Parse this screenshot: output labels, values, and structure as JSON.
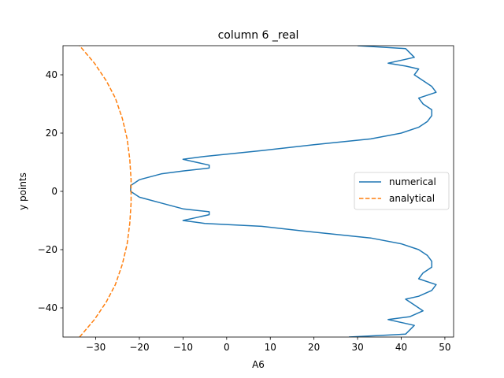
{
  "chart_data": {
    "type": "line",
    "title": "column 6 _real",
    "xlabel": "A6",
    "ylabel": "y points",
    "xlim": [
      -37.5,
      52
    ],
    "ylim": [
      -50,
      50
    ],
    "xticks": [
      -30,
      -20,
      -10,
      0,
      10,
      20,
      30,
      40,
      50
    ],
    "yticks": [
      -40,
      -20,
      0,
      20,
      40
    ],
    "xtick_labels": [
      "−30",
      "−20",
      "−10",
      "0",
      "10",
      "20",
      "30",
      "40",
      "50"
    ],
    "ytick_labels": [
      "−40",
      "−20",
      "0",
      "20",
      "40"
    ],
    "grid": false,
    "legend_position": "center-right",
    "series": [
      {
        "name": "numerical",
        "color": "#1f77b4",
        "style": "solid",
        "x": [
          28,
          41,
          43,
          37,
          42,
          45,
          43,
          41,
          44,
          47,
          48,
          44,
          45,
          47,
          47,
          46,
          44,
          40,
          33,
          20,
          8,
          -5,
          -10,
          -7,
          -4,
          -4,
          -10,
          -15,
          -20,
          -22,
          -22,
          -20,
          -15,
          -10,
          -4,
          -4,
          -7,
          -10,
          -5,
          8,
          20,
          33,
          40,
          44,
          46,
          47,
          47,
          45,
          44,
          48,
          47,
          45,
          43,
          44,
          41,
          37,
          43,
          41,
          30
        ],
        "y": [
          -50,
          -49,
          -46,
          -44,
          -43,
          -41,
          -39,
          -37,
          -36,
          -34,
          -32,
          -30,
          -28,
          -26,
          -24,
          -22,
          -20,
          -18,
          -16,
          -14,
          -12,
          -11,
          -10,
          -9,
          -8,
          -7,
          -6,
          -4,
          -2,
          0,
          2,
          4,
          6,
          7,
          8,
          9,
          10,
          11,
          12,
          14,
          16,
          18,
          20,
          22,
          24,
          26,
          28,
          30,
          32,
          34,
          36,
          38,
          40,
          42,
          43,
          44,
          46,
          49,
          50
        ]
      },
      {
        "name": "analytical",
        "color": "#ff7f0e",
        "style": "dashed",
        "x": [
          -33.7,
          -30.3,
          -27.6,
          -25.5,
          -23.9,
          -22.8,
          -22.2,
          -21.9,
          -21.9,
          -22.2,
          -22.8,
          -23.9,
          -25.5,
          -27.6,
          -30.3,
          -33.7
        ],
        "y": [
          -50,
          -44,
          -38,
          -32,
          -25,
          -18,
          -11,
          -4,
          4,
          11,
          18,
          25,
          32,
          38,
          44,
          50
        ]
      }
    ]
  }
}
